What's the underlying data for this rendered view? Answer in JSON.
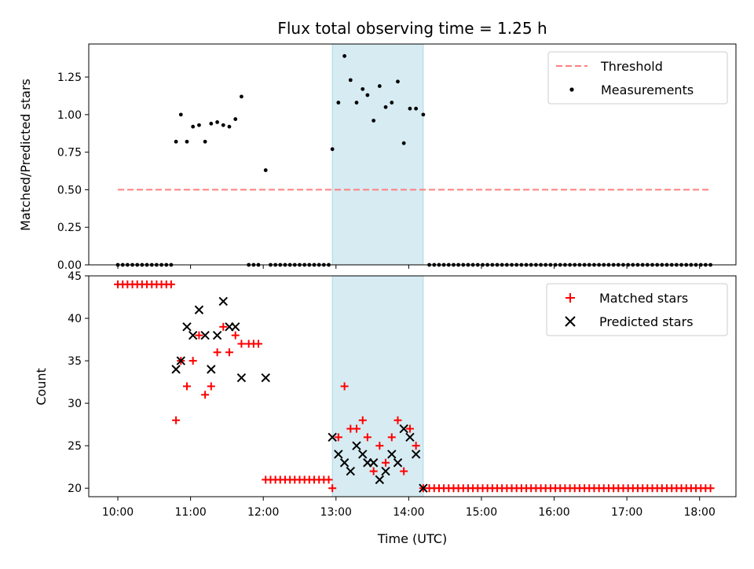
{
  "chart_data": {
    "type": "scatter",
    "title": "Flux total observing time = 1.25 h",
    "xlabel": "Time (UTC)",
    "x_ticks": [
      "10:00",
      "11:00",
      "12:00",
      "13:00",
      "14:00",
      "15:00",
      "16:00",
      "17:00",
      "18:00"
    ],
    "x_range_hours": [
      9.6,
      18.5
    ],
    "shaded_span_hours": [
      12.95,
      14.2
    ],
    "shaded_color": "#add8e6",
    "panels": [
      {
        "id": "ratio",
        "ylabel": "Matched/Predicted stars",
        "ylim": [
          0,
          1.47
        ],
        "y_ticks": [
          "0.00",
          "0.25",
          "0.50",
          "0.75",
          "1.00",
          "1.25"
        ],
        "legend": [
          {
            "label": "Threshold",
            "marker": "dashed-line",
            "color": "#ff7f7f"
          },
          {
            "label": "Measurements",
            "marker": "dot",
            "color": "#000000"
          }
        ],
        "threshold": {
          "y": 0.5,
          "x_start": 10.0,
          "x_end": 18.15
        },
        "measurements": [
          [
            10.0,
            0
          ],
          [
            10.067,
            0
          ],
          [
            10.133,
            0
          ],
          [
            10.2,
            0
          ],
          [
            10.267,
            0
          ],
          [
            10.333,
            0
          ],
          [
            10.4,
            0
          ],
          [
            10.467,
            0
          ],
          [
            10.533,
            0
          ],
          [
            10.6,
            0
          ],
          [
            10.667,
            0
          ],
          [
            10.733,
            0
          ],
          [
            10.8,
            0.82
          ],
          [
            10.867,
            1.0
          ],
          [
            10.95,
            0.82
          ],
          [
            11.033,
            0.92
          ],
          [
            11.117,
            0.93
          ],
          [
            11.2,
            0.82
          ],
          [
            11.283,
            0.94
          ],
          [
            11.367,
            0.95
          ],
          [
            11.45,
            0.93
          ],
          [
            11.533,
            0.92
          ],
          [
            11.617,
            0.97
          ],
          [
            11.7,
            1.12
          ],
          [
            11.8,
            0
          ],
          [
            11.867,
            0
          ],
          [
            11.933,
            0
          ],
          [
            12.033,
            0.63
          ],
          [
            12.1,
            0
          ],
          [
            12.167,
            0
          ],
          [
            12.233,
            0
          ],
          [
            12.3,
            0
          ],
          [
            12.367,
            0
          ],
          [
            12.433,
            0
          ],
          [
            12.5,
            0
          ],
          [
            12.567,
            0
          ],
          [
            12.633,
            0
          ],
          [
            12.7,
            0
          ],
          [
            12.767,
            0
          ],
          [
            12.833,
            0
          ],
          [
            12.9,
            0
          ],
          [
            12.95,
            0.77
          ],
          [
            13.033,
            1.08
          ],
          [
            13.117,
            1.39
          ],
          [
            13.2,
            1.23
          ],
          [
            13.283,
            1.08
          ],
          [
            13.367,
            1.17
          ],
          [
            13.433,
            1.13
          ],
          [
            13.517,
            0.96
          ],
          [
            13.6,
            1.19
          ],
          [
            13.683,
            1.05
          ],
          [
            13.767,
            1.08
          ],
          [
            13.85,
            1.22
          ],
          [
            13.933,
            0.81
          ],
          [
            14.017,
            1.04
          ],
          [
            14.1,
            1.04
          ],
          [
            14.2,
            1.0
          ],
          [
            14.283,
            0
          ],
          [
            14.35,
            0
          ],
          [
            14.417,
            0
          ],
          [
            14.483,
            0
          ],
          [
            14.55,
            0
          ],
          [
            14.617,
            0
          ],
          [
            14.683,
            0
          ],
          [
            14.75,
            0
          ],
          [
            14.817,
            0
          ],
          [
            14.883,
            0
          ],
          [
            14.95,
            0
          ],
          [
            15.017,
            0
          ],
          [
            15.083,
            0
          ],
          [
            15.15,
            0
          ],
          [
            15.217,
            0
          ],
          [
            15.283,
            0
          ],
          [
            15.35,
            0
          ],
          [
            15.417,
            0
          ],
          [
            15.483,
            0
          ],
          [
            15.55,
            0
          ],
          [
            15.617,
            0
          ],
          [
            15.683,
            0
          ],
          [
            15.75,
            0
          ],
          [
            15.817,
            0
          ],
          [
            15.883,
            0
          ],
          [
            15.95,
            0
          ],
          [
            16.017,
            0
          ],
          [
            16.083,
            0
          ],
          [
            16.15,
            0
          ],
          [
            16.217,
            0
          ],
          [
            16.283,
            0
          ],
          [
            16.35,
            0
          ],
          [
            16.417,
            0
          ],
          [
            16.483,
            0
          ],
          [
            16.55,
            0
          ],
          [
            16.617,
            0
          ],
          [
            16.683,
            0
          ],
          [
            16.75,
            0
          ],
          [
            16.817,
            0
          ],
          [
            16.883,
            0
          ],
          [
            16.95,
            0
          ],
          [
            17.017,
            0
          ],
          [
            17.083,
            0
          ],
          [
            17.15,
            0
          ],
          [
            17.217,
            0
          ],
          [
            17.283,
            0
          ],
          [
            17.35,
            0
          ],
          [
            17.417,
            0
          ],
          [
            17.483,
            0
          ],
          [
            17.55,
            0
          ],
          [
            17.617,
            0
          ],
          [
            17.683,
            0
          ],
          [
            17.75,
            0
          ],
          [
            17.817,
            0
          ],
          [
            17.883,
            0
          ],
          [
            17.95,
            0
          ],
          [
            18.017,
            0
          ],
          [
            18.083,
            0
          ],
          [
            18.15,
            0
          ]
        ]
      },
      {
        "id": "count",
        "ylabel": "Count",
        "ylim": [
          19,
          45
        ],
        "y_ticks": [
          "20",
          "25",
          "30",
          "35",
          "40",
          "45"
        ],
        "legend": [
          {
            "label": "Matched stars",
            "marker": "plus",
            "color": "#ff0000"
          },
          {
            "label": "Predicted stars",
            "marker": "x",
            "color": "#000000"
          }
        ],
        "matched": [
          [
            10.0,
            44
          ],
          [
            10.067,
            44
          ],
          [
            10.133,
            44
          ],
          [
            10.2,
            44
          ],
          [
            10.267,
            44
          ],
          [
            10.333,
            44
          ],
          [
            10.4,
            44
          ],
          [
            10.467,
            44
          ],
          [
            10.533,
            44
          ],
          [
            10.6,
            44
          ],
          [
            10.667,
            44
          ],
          [
            10.733,
            44
          ],
          [
            10.8,
            28
          ],
          [
            10.867,
            35
          ],
          [
            10.95,
            32
          ],
          [
            11.033,
            35
          ],
          [
            11.117,
            38
          ],
          [
            11.2,
            31
          ],
          [
            11.283,
            32
          ],
          [
            11.367,
            36
          ],
          [
            11.45,
            39
          ],
          [
            11.533,
            36
          ],
          [
            11.617,
            38
          ],
          [
            11.7,
            37
          ],
          [
            11.8,
            37
          ],
          [
            11.867,
            37
          ],
          [
            11.933,
            37
          ],
          [
            12.033,
            21
          ],
          [
            12.1,
            21
          ],
          [
            12.167,
            21
          ],
          [
            12.233,
            21
          ],
          [
            12.3,
            21
          ],
          [
            12.367,
            21
          ],
          [
            12.433,
            21
          ],
          [
            12.5,
            21
          ],
          [
            12.567,
            21
          ],
          [
            12.633,
            21
          ],
          [
            12.7,
            21
          ],
          [
            12.767,
            21
          ],
          [
            12.833,
            21
          ],
          [
            12.9,
            21
          ],
          [
            12.95,
            20
          ],
          [
            13.033,
            26
          ],
          [
            13.117,
            32
          ],
          [
            13.2,
            27
          ],
          [
            13.283,
            27
          ],
          [
            13.367,
            28
          ],
          [
            13.433,
            26
          ],
          [
            13.517,
            22
          ],
          [
            13.6,
            25
          ],
          [
            13.683,
            23
          ],
          [
            13.767,
            26
          ],
          [
            13.85,
            28
          ],
          [
            13.933,
            22
          ],
          [
            14.017,
            27
          ],
          [
            14.1,
            25
          ],
          [
            14.2,
            20
          ],
          [
            14.283,
            20
          ],
          [
            14.35,
            20
          ],
          [
            14.417,
            20
          ],
          [
            14.483,
            20
          ],
          [
            14.55,
            20
          ],
          [
            14.617,
            20
          ],
          [
            14.683,
            20
          ],
          [
            14.75,
            20
          ],
          [
            14.817,
            20
          ],
          [
            14.883,
            20
          ],
          [
            14.95,
            20
          ],
          [
            15.017,
            20
          ],
          [
            15.083,
            20
          ],
          [
            15.15,
            20
          ],
          [
            15.217,
            20
          ],
          [
            15.283,
            20
          ],
          [
            15.35,
            20
          ],
          [
            15.417,
            20
          ],
          [
            15.483,
            20
          ],
          [
            15.55,
            20
          ],
          [
            15.617,
            20
          ],
          [
            15.683,
            20
          ],
          [
            15.75,
            20
          ],
          [
            15.817,
            20
          ],
          [
            15.883,
            20
          ],
          [
            15.95,
            20
          ],
          [
            16.017,
            20
          ],
          [
            16.083,
            20
          ],
          [
            16.15,
            20
          ],
          [
            16.217,
            20
          ],
          [
            16.283,
            20
          ],
          [
            16.35,
            20
          ],
          [
            16.417,
            20
          ],
          [
            16.483,
            20
          ],
          [
            16.55,
            20
          ],
          [
            16.617,
            20
          ],
          [
            16.683,
            20
          ],
          [
            16.75,
            20
          ],
          [
            16.817,
            20
          ],
          [
            16.883,
            20
          ],
          [
            16.95,
            20
          ],
          [
            17.017,
            20
          ],
          [
            17.083,
            20
          ],
          [
            17.15,
            20
          ],
          [
            17.217,
            20
          ],
          [
            17.283,
            20
          ],
          [
            17.35,
            20
          ],
          [
            17.417,
            20
          ],
          [
            17.483,
            20
          ],
          [
            17.55,
            20
          ],
          [
            17.617,
            20
          ],
          [
            17.683,
            20
          ],
          [
            17.75,
            20
          ],
          [
            17.817,
            20
          ],
          [
            17.883,
            20
          ],
          [
            17.95,
            20
          ],
          [
            18.017,
            20
          ],
          [
            18.083,
            20
          ],
          [
            18.15,
            20
          ]
        ],
        "predicted": [
          [
            10.8,
            34
          ],
          [
            10.867,
            35
          ],
          [
            10.95,
            39
          ],
          [
            11.033,
            38
          ],
          [
            11.117,
            41
          ],
          [
            11.2,
            38
          ],
          [
            11.283,
            34
          ],
          [
            11.367,
            38
          ],
          [
            11.45,
            42
          ],
          [
            11.533,
            39
          ],
          [
            11.617,
            39
          ],
          [
            11.7,
            33
          ],
          [
            12.033,
            33
          ],
          [
            12.95,
            26
          ],
          [
            13.033,
            24
          ],
          [
            13.117,
            23
          ],
          [
            13.2,
            22
          ],
          [
            13.283,
            25
          ],
          [
            13.367,
            24
          ],
          [
            13.433,
            23
          ],
          [
            13.517,
            23
          ],
          [
            13.6,
            21
          ],
          [
            13.683,
            22
          ],
          [
            13.767,
            24
          ],
          [
            13.85,
            23
          ],
          [
            13.933,
            27
          ],
          [
            14.017,
            26
          ],
          [
            14.1,
            24
          ],
          [
            14.2,
            20
          ]
        ]
      }
    ]
  }
}
